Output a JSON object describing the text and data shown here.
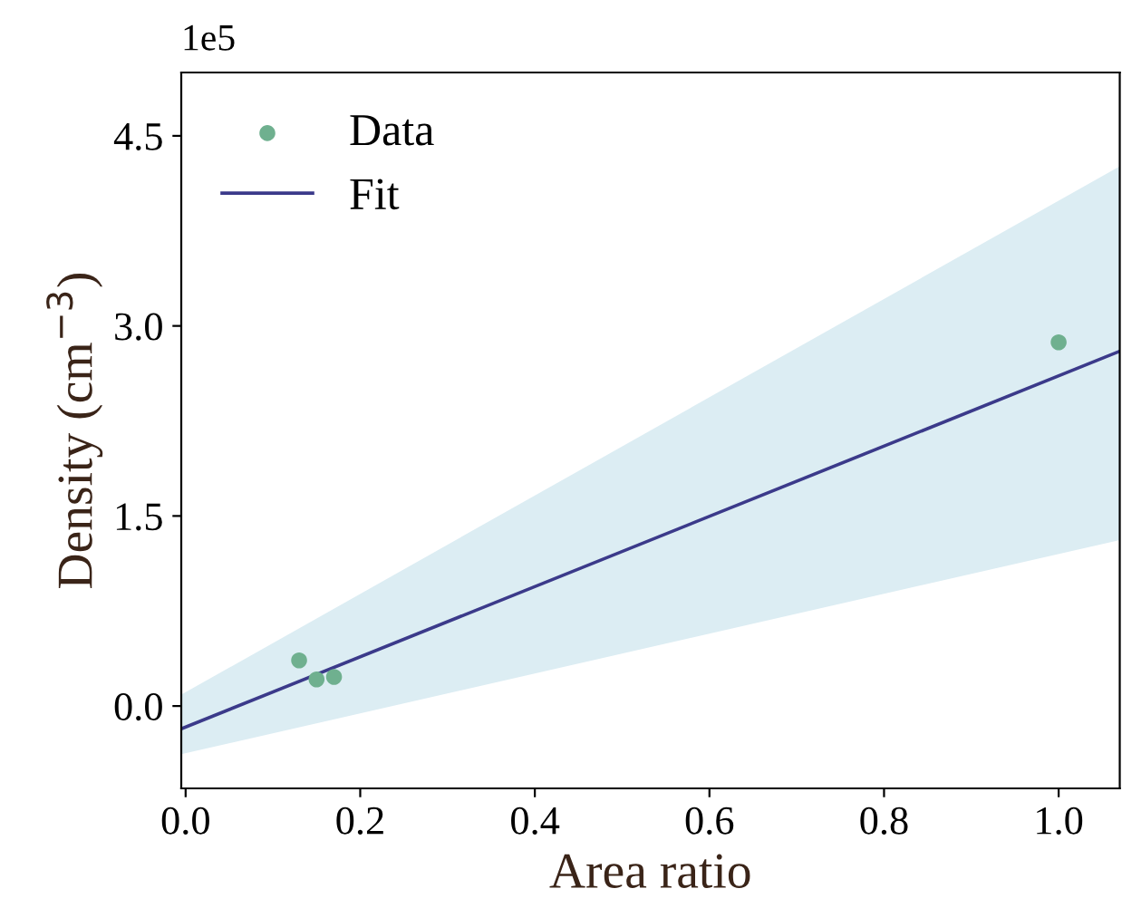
{
  "chart_data": {
    "type": "scatter",
    "xlabel": "Area ratio",
    "ylabel": "Density (cm$^{−3}$)",
    "annotations": [
      "1e5"
    ],
    "xlim": [
      -0.005,
      1.07
    ],
    "ylim": [
      -0.65,
      5.0
    ],
    "xticks": [
      {
        "value": 0,
        "label": "0.0"
      },
      0.2,
      0.4,
      0.6,
      0.8,
      {
        "value": 1,
        "label": "1.0"
      }
    ],
    "yticks": [
      {
        "value": 0,
        "label": "0.0"
      },
      1.5,
      {
        "value": 3,
        "label": "3.0"
      },
      4.5
    ],
    "grid": false,
    "legend": "top left",
    "series": [
      {
        "name": "Data",
        "color": "#6fb08f",
        "marker": "circle",
        "x": [
          0.13,
          0.15,
          0.17,
          1.0
        ],
        "values": [
          0.36,
          0.21,
          0.23,
          2.87
        ]
      },
      {
        "name": "Fit",
        "type": "line",
        "color": "#3b3a8a",
        "line_style": "solid",
        "x": [
          -0.005,
          1.07
        ],
        "values": [
          -0.18,
          2.8
        ],
        "lower": [
          -0.38,
          1.31
        ],
        "upper": [
          0.09,
          4.26
        ]
      }
    ]
  }
}
